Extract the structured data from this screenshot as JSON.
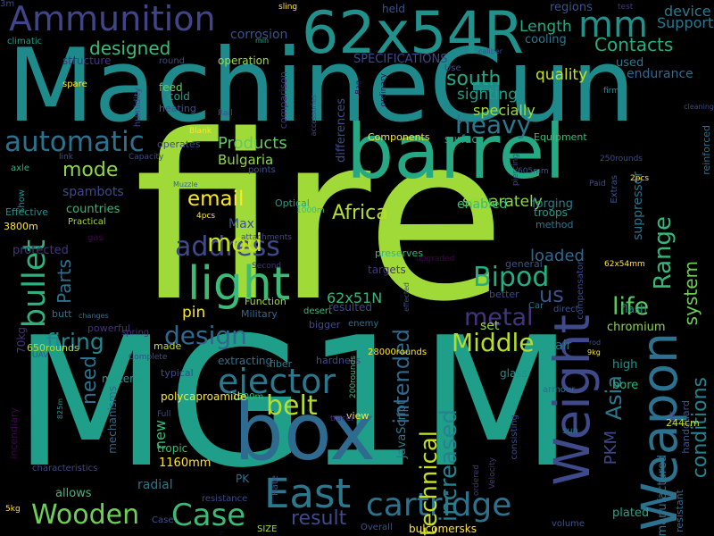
{
  "words": [
    {
      "text": "fire",
      "color": "#a0da39"
    },
    {
      "text": "MG1M",
      "color": "#1f9e89"
    },
    {
      "text": "MachineGun",
      "color": "#1f8a8c"
    },
    {
      "text": "box",
      "color": "#2f6b8e"
    },
    {
      "text": "barrel",
      "color": "#26a884"
    },
    {
      "text": "62x54R",
      "color": "#21918c"
    },
    {
      "text": "Ammunition",
      "color": "#414487"
    },
    {
      "text": "light",
      "color": "#3bbb75"
    },
    {
      "text": "East",
      "color": "#2a788e"
    },
    {
      "text": "Weight",
      "color": "#3e4a89"
    },
    {
      "text": "Weapon",
      "color": "#2c728e"
    },
    {
      "text": "Wooden",
      "color": "#6ece58"
    },
    {
      "text": "Case",
      "color": "#3bbb75"
    },
    {
      "text": "cartridge",
      "color": "#2c728e"
    },
    {
      "text": "ejector",
      "color": "#2a788e"
    },
    {
      "text": "bullet",
      "color": "#2db27d"
    },
    {
      "text": "address",
      "color": "#3e4a89"
    },
    {
      "text": "mm",
      "color": "#21918c"
    },
    {
      "text": "automatic",
      "color": "#2c728e"
    },
    {
      "text": "Bipod",
      "color": "#26ad81"
    },
    {
      "text": "heavy",
      "color": "#2a788e"
    },
    {
      "text": "design",
      "color": "#31688e"
    },
    {
      "text": "belt",
      "color": "#b5de2b"
    },
    {
      "text": "metal",
      "color": "#46337e"
    },
    {
      "text": "firing",
      "color": "#25848e"
    },
    {
      "text": "Middle",
      "color": "#b5de2b"
    },
    {
      "text": "life",
      "color": "#5ec962"
    },
    {
      "text": "Range",
      "color": "#35b779"
    },
    {
      "text": "email",
      "color": "#fde725"
    },
    {
      "text": "mod",
      "color": "#c8e020"
    },
    {
      "text": "PKM",
      "color": "#3f4788"
    },
    {
      "text": "Asia",
      "color": "#2a788e"
    },
    {
      "text": "technical",
      "color": "#c8e020"
    },
    {
      "text": "increased",
      "color": "#26828e"
    },
    {
      "text": "intended",
      "color": "#31688e"
    },
    {
      "text": "conditions",
      "color": "#26828e"
    },
    {
      "text": "system",
      "color": "#6ece58"
    },
    {
      "text": "result",
      "color": "#3e4a89"
    },
    {
      "text": "designed",
      "color": "#3bbb75"
    },
    {
      "text": "Contacts",
      "color": "#26ad81"
    },
    {
      "text": "south",
      "color": "#22a785"
    },
    {
      "text": "mode",
      "color": "#8fd744"
    },
    {
      "text": "Products",
      "color": "#5ec962"
    },
    {
      "text": "Africa",
      "color": "#b5de2b"
    },
    {
      "text": "Parts",
      "color": "#2c728e"
    },
    {
      "text": "loaded",
      "color": "#31688e"
    },
    {
      "text": "Length",
      "color": "#22a785"
    },
    {
      "text": "device",
      "color": "#2a788e"
    },
    {
      "text": "Support",
      "color": "#2a788e"
    },
    {
      "text": "quality",
      "color": "#c8e020"
    },
    {
      "text": "sighting",
      "color": "#1f9e89"
    },
    {
      "text": "specially",
      "color": "#a0da39"
    },
    {
      "text": "us",
      "color": "#3b528b"
    },
    {
      "text": "Bulgaria",
      "color": "#8fd744"
    },
    {
      "text": "spambots",
      "color": "#3e4a89"
    },
    {
      "text": "set",
      "color": "#8fd744"
    },
    {
      "text": "separately",
      "color": "#8fd744"
    },
    {
      "text": "enabled",
      "color": "#3bbb75"
    },
    {
      "text": "62x51N",
      "color": "#35b779"
    },
    {
      "text": "need",
      "color": "#2c728e"
    },
    {
      "text": "pin",
      "color": "#fde725"
    },
    {
      "text": "Max",
      "color": "#3b528b"
    },
    {
      "text": "countries",
      "color": "#35b779"
    },
    {
      "text": "regions",
      "color": "#3b528b"
    },
    {
      "text": "cooling",
      "color": "#2a788e"
    },
    {
      "text": "used",
      "color": "#2a788e"
    },
    {
      "text": "endurance",
      "color": "#31688e"
    },
    {
      "text": "SPECIFICATIONS",
      "color": "#3e4a89"
    },
    {
      "text": "Components",
      "color": "#fde725"
    },
    {
      "text": "Equipment",
      "color": "#3bbb75"
    },
    {
      "text": "suppressor",
      "color": "#2c728e"
    },
    {
      "text": "reinforced",
      "color": "#2c728e"
    },
    {
      "text": "chromium",
      "color": "#8fd744"
    },
    {
      "text": "flash",
      "color": "#1f9e89"
    },
    {
      "text": "air",
      "color": "#2c728e"
    },
    {
      "text": "handguard",
      "color": "#3b528b"
    },
    {
      "text": "high",
      "color": "#21918c"
    },
    {
      "text": "bore",
      "color": "#2db27d"
    },
    {
      "text": "manufactured",
      "color": "#2c728e"
    },
    {
      "text": "resistant",
      "color": "#31688e"
    },
    {
      "text": "forging",
      "color": "#26828e"
    },
    {
      "text": "troops",
      "color": "#1f9e89"
    },
    {
      "text": "method",
      "color": "#2a788e"
    },
    {
      "text": "operation",
      "color": "#a0da39"
    },
    {
      "text": "structure",
      "color": "#46337e"
    },
    {
      "text": "round",
      "color": "#3e4a89"
    },
    {
      "text": "feed",
      "color": "#6ece58"
    },
    {
      "text": "cold",
      "color": "#1f9e89"
    },
    {
      "text": "heating",
      "color": "#3b528b"
    },
    {
      "text": "spare",
      "color": "#fde725"
    },
    {
      "text": "climatic",
      "color": "#1f9e89"
    },
    {
      "text": "humidity",
      "color": "#3e4a89"
    },
    {
      "text": "Blank",
      "color": "#fde725"
    },
    {
      "text": "operates",
      "color": "#3e4a89"
    },
    {
      "text": "Rail",
      "color": "#3b528b"
    },
    {
      "text": "comparison",
      "color": "#46337e"
    },
    {
      "text": "differences",
      "color": "#3e4a89"
    },
    {
      "text": "surface",
      "color": "#22a785"
    },
    {
      "text": "Optical",
      "color": "#1f9e89"
    },
    {
      "text": "1000m",
      "color": "#3bbb75"
    },
    {
      "text": "points",
      "color": "#3b528b"
    },
    {
      "text": "desert",
      "color": "#3bbb75"
    },
    {
      "text": "resulted",
      "color": "#3e4a89"
    },
    {
      "text": "Military",
      "color": "#31688e"
    },
    {
      "text": "bigger",
      "color": "#3e4a89"
    },
    {
      "text": "enemy",
      "color": "#2c728e"
    },
    {
      "text": "hardness",
      "color": "#3e4a89"
    },
    {
      "text": "fiber",
      "color": "#2a788e"
    },
    {
      "text": "view",
      "color": "#fde725"
    },
    {
      "text": "JavaScript",
      "color": "#2a788e"
    },
    {
      "text": "preserves",
      "color": "#35b779"
    },
    {
      "text": "targets",
      "color": "#46337e"
    },
    {
      "text": "better",
      "color": "#3e4a89"
    },
    {
      "text": "general",
      "color": "#3b528b"
    },
    {
      "text": "Car",
      "color": "#2c728e"
    },
    {
      "text": "direct",
      "color": "#3b528b"
    },
    {
      "text": "compensator",
      "color": "#3e4a89"
    },
    {
      "text": "armour",
      "color": "#31688e"
    },
    {
      "text": "glass",
      "color": "#21918c"
    },
    {
      "text": "sun",
      "color": "#2a788e"
    },
    {
      "text": "plated",
      "color": "#22a785"
    },
    {
      "text": "consisting",
      "color": "#3e4a89"
    },
    {
      "text": "bulcomersks",
      "color": "#fde725"
    },
    {
      "text": "Overall",
      "color": "#3b528b"
    },
    {
      "text": "SIZE",
      "color": "#a0da39"
    },
    {
      "text": "volume",
      "color": "#3b528b"
    },
    {
      "text": "PK",
      "color": "#2c728e"
    },
    {
      "text": "allows",
      "color": "#3bbb75"
    },
    {
      "text": "radial",
      "color": "#2a788e"
    },
    {
      "text": "resistance",
      "color": "#3e4a89"
    },
    {
      "text": "Case",
      "color": "#3b528b"
    },
    {
      "text": "1160mm",
      "color": "#fde725"
    },
    {
      "text": "tropic",
      "color": "#3bbb75"
    },
    {
      "text": "new",
      "color": "#3bbb75"
    },
    {
      "text": "Full",
      "color": "#3e4a89"
    },
    {
      "text": "1500m",
      "color": "#3bbb75"
    },
    {
      "text": "typical",
      "color": "#3e4a89"
    },
    {
      "text": "polycaproamide",
      "color": "#fde725"
    },
    {
      "text": "Rate",
      "color": "#3b528b"
    },
    {
      "text": "extracting",
      "color": "#2c728e"
    },
    {
      "text": "made",
      "color": "#c8e020"
    },
    {
      "text": "material",
      "color": "#1f9e89"
    },
    {
      "text": "butt",
      "color": "#2c728e"
    },
    {
      "text": "powerful",
      "color": "#46337e"
    },
    {
      "text": "spring",
      "color": "#46337e"
    },
    {
      "text": "650rounds",
      "color": "#b5de2b"
    },
    {
      "text": "UAV",
      "color": "#3b528b"
    },
    {
      "text": "70kg",
      "color": "#46337e"
    },
    {
      "text": "protected",
      "color": "#46337e"
    },
    {
      "text": "changes",
      "color": "#2c728e"
    },
    {
      "text": "gas",
      "color": "#440154"
    },
    {
      "text": "3800m",
      "color": "#fde725"
    },
    {
      "text": "Practical",
      "color": "#a0da39"
    },
    {
      "text": "4pcs",
      "color": "#fde725"
    },
    {
      "text": "Effective",
      "color": "#21918c"
    },
    {
      "text": "show",
      "color": "#21918c"
    },
    {
      "text": "axle",
      "color": "#2db27d"
    },
    {
      "text": "link",
      "color": "#3b528b"
    },
    {
      "text": "Capacity",
      "color": "#3e4a89"
    },
    {
      "text": "Muzzle",
      "color": "#31688e"
    },
    {
      "text": "attachments",
      "color": "#3e4a89"
    },
    {
      "text": "Second",
      "color": "#46337e"
    },
    {
      "text": "Function",
      "color": "#a0da39"
    },
    {
      "text": "28000rounds",
      "color": "#fde725"
    },
    {
      "text": "200rounds",
      "color": "#3bbb75"
    },
    {
      "text": "incendiary",
      "color": "#440154"
    },
    {
      "text": "mechanisms",
      "color": "#31688e"
    },
    {
      "text": "characteristics",
      "color": "#3e4a89"
    },
    {
      "text": "5kg",
      "color": "#fde725"
    },
    {
      "text": "825m",
      "color": "#21918c"
    },
    {
      "text": "Complete",
      "color": "#3e4a89"
    },
    {
      "text": "tracer",
      "color": "#46337e"
    },
    {
      "text": "Velocity",
      "color": "#46337e"
    },
    {
      "text": "ordered",
      "color": "#46337e"
    },
    {
      "text": "piercing",
      "color": "#3e4a89"
    },
    {
      "text": "605mm",
      "color": "#3b528b"
    },
    {
      "text": "Extras",
      "color": "#3b528b"
    },
    {
      "text": "2pcs",
      "color": "#fde725"
    },
    {
      "text": "Paid",
      "color": "#3e4a89"
    },
    {
      "text": "62x54mm",
      "color": "#fde725"
    },
    {
      "text": "250rounds",
      "color": "#3e4a89"
    },
    {
      "text": "rod",
      "color": "#3b528b"
    },
    {
      "text": "cleaning",
      "color": "#3e4a89"
    },
    {
      "text": "firm",
      "color": "#21918c"
    },
    {
      "text": "9kg",
      "color": "#fde725"
    },
    {
      "text": "split",
      "color": "#3e4a89"
    },
    {
      "text": "244cm",
      "color": "#c8e020"
    },
    {
      "text": "Use",
      "color": "#3e4a89"
    },
    {
      "text": "caliber",
      "color": "#3e4a89"
    },
    {
      "text": "ordinary",
      "color": "#440154"
    },
    {
      "text": "Bag",
      "color": "#440154"
    },
    {
      "text": "accessories",
      "color": "#3e4a89"
    },
    {
      "text": "upgraded",
      "color": "#440154"
    },
    {
      "text": "corrosion",
      "color": "#3b528b"
    },
    {
      "text": "min",
      "color": "#26ad81"
    },
    {
      "text": "sling",
      "color": "#fde725"
    },
    {
      "text": "held",
      "color": "#3b528b"
    },
    {
      "text": "test",
      "color": "#46337e"
    },
    {
      "text": "effected",
      "color": "#3e4a89"
    },
    {
      "text": "1950x25x3",
      "color": "#46337e"
    },
    {
      "text": "4-5x3",
      "color": "#3e4a89"
    },
    {
      "text": "7-8-4",
      "color": "#440154"
    },
    {
      "text": "3m",
      "color": "#3e4a89"
    }
  ]
}
